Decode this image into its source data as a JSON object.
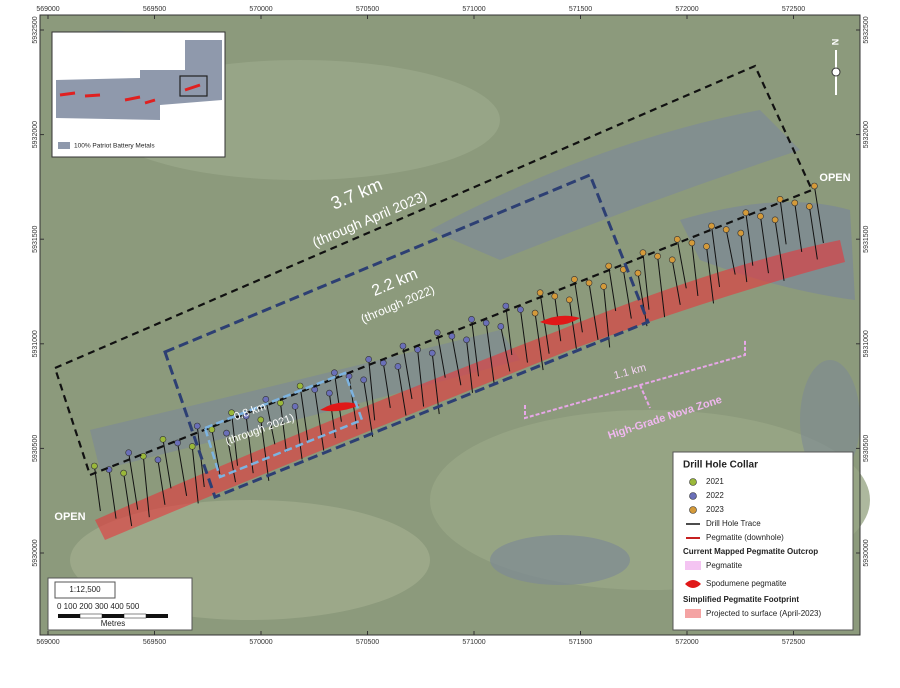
{
  "map": {
    "easting_ticks": [
      569000,
      569500,
      570000,
      570500,
      571000,
      571500,
      572000,
      572500
    ],
    "northing_ticks": [
      5932500,
      5932000,
      5931500,
      5931000,
      5930500,
      5930000
    ],
    "annotations": {
      "outer_length": "3.7 km",
      "outer_period": "(through April 2023)",
      "middle_length": "2.2 km",
      "middle_period": "(through 2022)",
      "inner_length": "0.8 km",
      "inner_period": "(through 2021)",
      "zone_length": "1.1 km",
      "zone_name": "High-Grade Nova Zone",
      "open_east": "OPEN",
      "open_west": "OPEN"
    },
    "inset": {
      "legend": "100% Patriot Battery Metals"
    },
    "north": "N",
    "scale": {
      "ratio": "1:12,500",
      "ticks": "0 100 200 300 400 500",
      "unit": "Metres"
    },
    "legend": {
      "collar_title": "Drill Hole Collar",
      "collars": [
        {
          "label": "2021",
          "color": "#9ab83a"
        },
        {
          "label": "2022",
          "color": "#6a6fb8"
        },
        {
          "label": "2023",
          "color": "#d49a3a"
        }
      ],
      "trace": "Drill Hole Trace",
      "pegmatite_downhole": "Pegmatite (downhole)",
      "outcrop_title": "Current Mapped Pegmatite Outcrop",
      "pegmatite": "Pegmatite",
      "spodumene": "Spodumene pegmatite",
      "footprint_title": "Simplified Pegmatite Footprint",
      "footprint": "Projected to surface (April-2023)"
    }
  }
}
